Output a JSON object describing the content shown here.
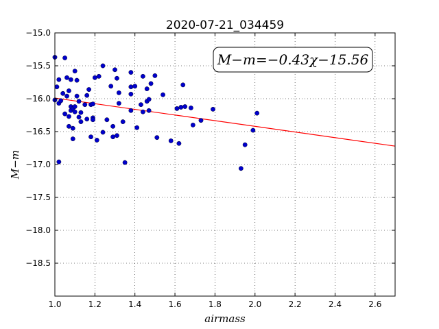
{
  "chart_data": {
    "type": "scatter",
    "title": "2020-07-21_034459",
    "xlabel": "airmass",
    "ylabel": "M−m",
    "xlim": [
      1.0,
      2.7
    ],
    "ylim": [
      -15.0,
      -19.0
    ],
    "y_inverted": true,
    "x_ticks": [
      "1.0",
      "1.2",
      "1.4",
      "1.6",
      "1.8",
      "2.0",
      "2.2",
      "2.4",
      "2.6"
    ],
    "y_ticks": [
      "−15.0",
      "−15.5",
      "−16.0",
      "−16.5",
      "−17.0",
      "−17.5",
      "−18.0",
      "−18.5"
    ],
    "grid": true,
    "annotation": "M−m=−0.43χ−15.56",
    "fit": {
      "slope": -0.43,
      "intercept": -15.56,
      "color": "#ff0000"
    },
    "marker_color": "#0000cc",
    "points": [
      [
        1.0,
        -15.37
      ],
      [
        1.0,
        -16.02
      ],
      [
        1.01,
        -15.82
      ],
      [
        1.02,
        -15.71
      ],
      [
        1.02,
        -16.07
      ],
      [
        1.02,
        -16.96
      ],
      [
        1.03,
        -16.03
      ],
      [
        1.04,
        -15.92
      ],
      [
        1.05,
        -15.38
      ],
      [
        1.05,
        -16.23
      ],
      [
        1.06,
        -15.68
      ],
      [
        1.06,
        -15.96
      ],
      [
        1.07,
        -15.88
      ],
      [
        1.07,
        -16.27
      ],
      [
        1.07,
        -16.42
      ],
      [
        1.08,
        -15.71
      ],
      [
        1.08,
        -16.12
      ],
      [
        1.08,
        -16.18
      ],
      [
        1.09,
        -16.15
      ],
      [
        1.09,
        -16.45
      ],
      [
        1.09,
        -16.61
      ],
      [
        1.1,
        -15.58
      ],
      [
        1.1,
        -16.2
      ],
      [
        1.1,
        -16.12
      ],
      [
        1.11,
        -15.72
      ],
      [
        1.11,
        -15.96
      ],
      [
        1.12,
        -16.04
      ],
      [
        1.12,
        -16.28
      ],
      [
        1.13,
        -16.21
      ],
      [
        1.13,
        -16.35
      ],
      [
        1.15,
        -16.09
      ],
      [
        1.16,
        -16.31
      ],
      [
        1.16,
        -15.95
      ],
      [
        1.17,
        -15.86
      ],
      [
        1.18,
        -16.09
      ],
      [
        1.18,
        -16.58
      ],
      [
        1.19,
        -16.29
      ],
      [
        1.19,
        -16.32
      ],
      [
        1.19,
        -16.08
      ],
      [
        1.2,
        -15.68
      ],
      [
        1.21,
        -16.63
      ],
      [
        1.22,
        -15.66
      ],
      [
        1.24,
        -15.5
      ],
      [
        1.24,
        -16.51
      ],
      [
        1.26,
        -16.32
      ],
      [
        1.28,
        -15.81
      ],
      [
        1.29,
        -16.42
      ],
      [
        1.29,
        -16.58
      ],
      [
        1.3,
        -15.56
      ],
      [
        1.31,
        -15.69
      ],
      [
        1.31,
        -16.56
      ],
      [
        1.32,
        -15.91
      ],
      [
        1.32,
        -16.07
      ],
      [
        1.34,
        -16.35
      ],
      [
        1.35,
        -16.97
      ],
      [
        1.38,
        -15.82
      ],
      [
        1.38,
        -15.6
      ],
      [
        1.38,
        -15.93
      ],
      [
        1.38,
        -16.18
      ],
      [
        1.4,
        -15.81
      ],
      [
        1.41,
        -16.44
      ],
      [
        1.43,
        -16.09
      ],
      [
        1.44,
        -16.2
      ],
      [
        1.44,
        -15.66
      ],
      [
        1.46,
        -15.85
      ],
      [
        1.46,
        -16.04
      ],
      [
        1.47,
        -16.01
      ],
      [
        1.47,
        -16.18
      ],
      [
        1.48,
        -15.77
      ],
      [
        1.5,
        -15.65
      ],
      [
        1.51,
        -16.59
      ],
      [
        1.54,
        -15.94
      ],
      [
        1.58,
        -16.64
      ],
      [
        1.61,
        -16.15
      ],
      [
        1.62,
        -16.68
      ],
      [
        1.63,
        -16.13
      ],
      [
        1.64,
        -15.79
      ],
      [
        1.65,
        -16.12
      ],
      [
        1.68,
        -16.14
      ],
      [
        1.69,
        -16.4
      ],
      [
        1.73,
        -16.33
      ],
      [
        1.79,
        -16.16
      ],
      [
        1.93,
        -17.06
      ],
      [
        1.95,
        -16.7
      ],
      [
        1.99,
        -16.48
      ],
      [
        2.01,
        -16.22
      ]
    ]
  }
}
